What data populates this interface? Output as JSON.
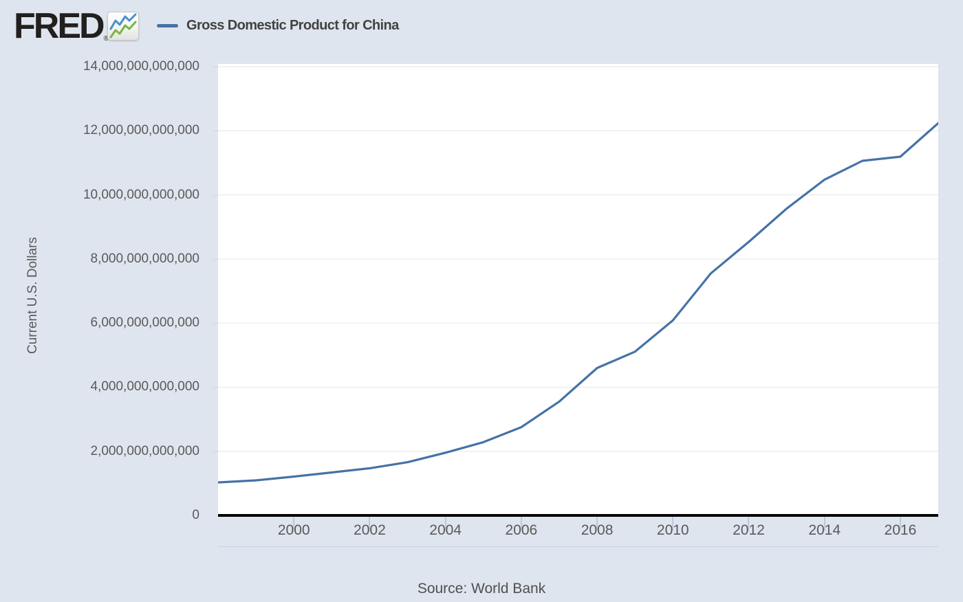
{
  "header": {
    "logo_text": "FRED",
    "registered_mark": "®",
    "legend_label": "Gross Domestic Product for China"
  },
  "colors": {
    "background": "#dfe5ee",
    "plot_background": "#ffffff",
    "line": "#4572a7",
    "gridline": "#e6e6e6",
    "axis_text": "#595959",
    "x_axis_line": "#000000",
    "tick_mark": "#b9c9dc",
    "logo_text_color": "#221f1f",
    "icon_line_blue": "#4a8fc7",
    "icon_line_green": "#7cb342"
  },
  "chart_data": {
    "type": "line",
    "title": "Gross Domestic Product for China",
    "xlabel": "",
    "ylabel": "Current U.S. Dollars",
    "source_note": "Source: World Bank",
    "xlim": [
      1998,
      2017
    ],
    "ylim": [
      0,
      14000000000000
    ],
    "grid": true,
    "legend_position": "top-header",
    "x_ticks": [
      2000,
      2002,
      2004,
      2006,
      2008,
      2010,
      2012,
      2014,
      2016
    ],
    "x_tick_labels": [
      "2000",
      "2002",
      "2004",
      "2006",
      "2008",
      "2010",
      "2012",
      "2014",
      "2016"
    ],
    "y_ticks": [
      0,
      2000000000000,
      4000000000000,
      6000000000000,
      8000000000000,
      10000000000000,
      12000000000000,
      14000000000000
    ],
    "y_tick_labels": [
      "0",
      "2,000,000,000,000",
      "4,000,000,000,000",
      "6,000,000,000,000",
      "8,000,000,000,000",
      "10,000,000,000,000",
      "12,000,000,000,000",
      "14,000,000,000,000"
    ],
    "series": [
      {
        "name": "Gross Domestic Product for China",
        "color": "#4572a7",
        "x": [
          1998,
          1999,
          2000,
          2001,
          2002,
          2003,
          2004,
          2005,
          2006,
          2007,
          2008,
          2009,
          2010,
          2011,
          2012,
          2013,
          2014,
          2015,
          2016,
          2017
        ],
        "values": [
          1029000000000,
          1094000000000,
          1211000000000,
          1339000000000,
          1471000000000,
          1660000000000,
          1955000000000,
          2286000000000,
          2752000000000,
          3550000000000,
          4598000000000,
          5110000000000,
          6087000000000,
          7552000000000,
          8532000000000,
          9570000000000,
          10476000000000,
          11062000000000,
          11191000000000,
          12238000000000
        ]
      }
    ]
  }
}
